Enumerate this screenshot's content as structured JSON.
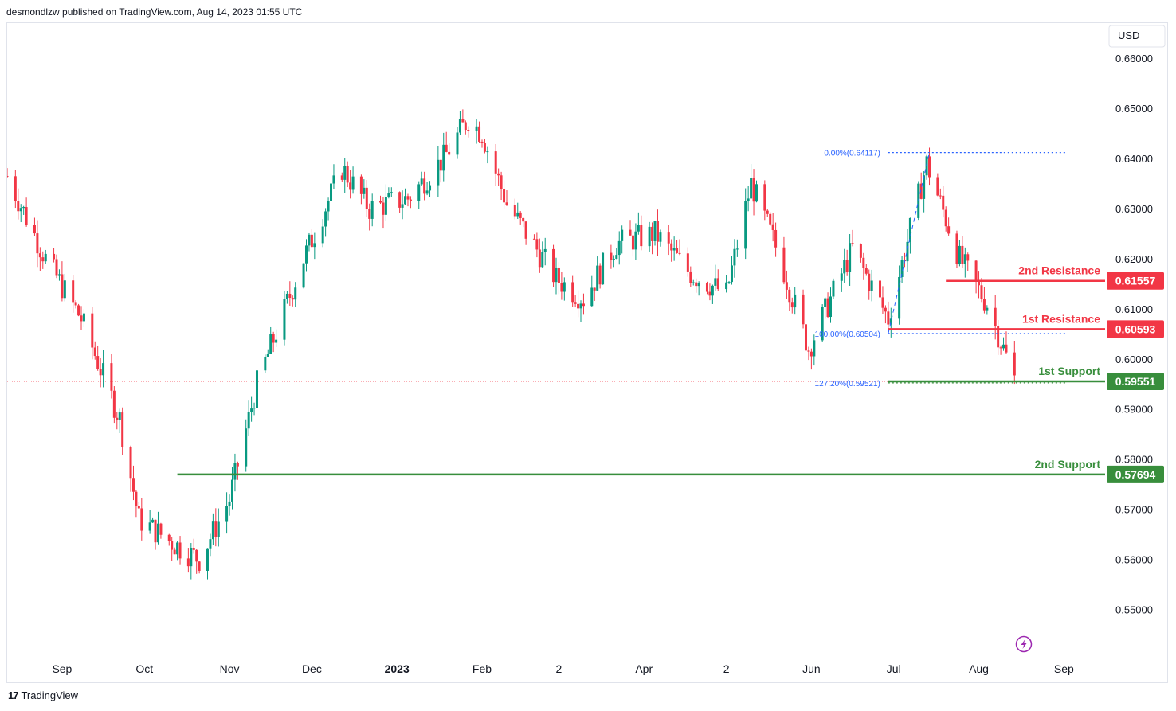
{
  "header": {
    "attribution": "desmondlzw published on TradingView.com, Aug 14, 2023 01:55 UTC"
  },
  "footer": {
    "brand": "TradingView"
  },
  "colors": {
    "up": "#089981",
    "down": "#f23645",
    "resistance": "#f23645",
    "support": "#388e3c",
    "fib": "#2962ff",
    "text": "#131722",
    "axis": "#131722"
  },
  "chart_data": {
    "type": "candlestick",
    "currency": "USD",
    "y_ticks": [
      "0.66000",
      "0.65000",
      "0.64000",
      "0.63000",
      "0.62000",
      "0.61000",
      "0.60000",
      "0.59000",
      "0.58000",
      "0.57000",
      "0.56000",
      "0.55000"
    ],
    "ylim": [
      0.5415,
      0.667
    ],
    "x_labels": [
      {
        "label": "Sep",
        "date": "2022-09-01"
      },
      {
        "label": "Oct",
        "date": "2022-10-01"
      },
      {
        "label": "Nov",
        "date": "2022-11-01"
      },
      {
        "label": "Dec",
        "date": "2022-12-01"
      },
      {
        "label": "2023",
        "date": "2023-01-01",
        "bold": true
      },
      {
        "label": "Feb",
        "date": "2023-02-01"
      },
      {
        "label": "2",
        "date": "2023-03-01"
      },
      {
        "label": "Apr",
        "date": "2023-04-01"
      },
      {
        "label": "2",
        "date": "2023-05-01"
      },
      {
        "label": "Jun",
        "date": "2023-06-01"
      },
      {
        "label": "Jul",
        "date": "2023-07-01"
      },
      {
        "label": "Aug",
        "date": "2023-08-01"
      },
      {
        "label": "Sep",
        "date": "2023-09-01"
      }
    ],
    "xlim": [
      "2022-08-12",
      "2023-09-16"
    ],
    "close_path": [
      [
        "2022-08-12",
        0.6365
      ],
      [
        "2022-08-26",
        0.62
      ],
      [
        "2022-09-08",
        0.608
      ],
      [
        "2022-09-22",
        0.588
      ],
      [
        "2022-09-29",
        0.568
      ],
      [
        "2022-10-12",
        0.563
      ],
      [
        "2022-10-21",
        0.56
      ],
      [
        "2022-11-01",
        0.572
      ],
      [
        "2022-11-11",
        0.595
      ],
      [
        "2022-11-28",
        0.62
      ],
      [
        "2022-12-12",
        0.638
      ],
      [
        "2022-12-22",
        0.63
      ],
      [
        "2023-01-05",
        0.632
      ],
      [
        "2023-01-18",
        0.64
      ],
      [
        "2023-01-27",
        0.648
      ],
      [
        "2023-02-01",
        0.645
      ],
      [
        "2023-02-10",
        0.631
      ],
      [
        "2023-02-28",
        0.616
      ],
      [
        "2023-03-10",
        0.612
      ],
      [
        "2023-03-22",
        0.623
      ],
      [
        "2023-04-05",
        0.625
      ],
      [
        "2023-04-18",
        0.617
      ],
      [
        "2023-05-01",
        0.613
      ],
      [
        "2023-05-10",
        0.635
      ],
      [
        "2023-05-20",
        0.621
      ],
      [
        "2023-05-31",
        0.602
      ],
      [
        "2023-06-16",
        0.622
      ],
      [
        "2023-06-29",
        0.608
      ],
      [
        "2023-07-13",
        0.639
      ],
      [
        "2023-07-25",
        0.62
      ],
      [
        "2023-08-04",
        0.611
      ],
      [
        "2023-08-14",
        0.596
      ]
    ],
    "fib_labels": [
      {
        "label": "0.00%(0.64117)",
        "value": 0.64117,
        "from": "2023-06-29",
        "to": "2023-09-02"
      },
      {
        "label": "100.00%(0.60504)",
        "value": 0.60504,
        "from": "2023-06-29",
        "to": "2023-09-02"
      },
      {
        "label": "127.20%(0.59521)",
        "value": 0.59521,
        "from": "2023-06-29",
        "to": "2023-09-02"
      }
    ],
    "levels": [
      {
        "name": "2nd Resistance",
        "price_label": "0.61557",
        "value": 0.61557,
        "kind": "resistance",
        "from": "2023-07-20"
      },
      {
        "name": "1st Resistance",
        "price_label": "0.60593",
        "value": 0.60593,
        "kind": "resistance",
        "from": "2023-06-29"
      },
      {
        "name": "1st Support",
        "price_label": "0.59551",
        "value": 0.59551,
        "kind": "support",
        "from": "2023-06-29"
      },
      {
        "name": "2nd Support",
        "price_label": "0.57694",
        "value": 0.57694,
        "kind": "support",
        "from": "2022-10-13"
      }
    ],
    "last_price": 0.59551
  }
}
